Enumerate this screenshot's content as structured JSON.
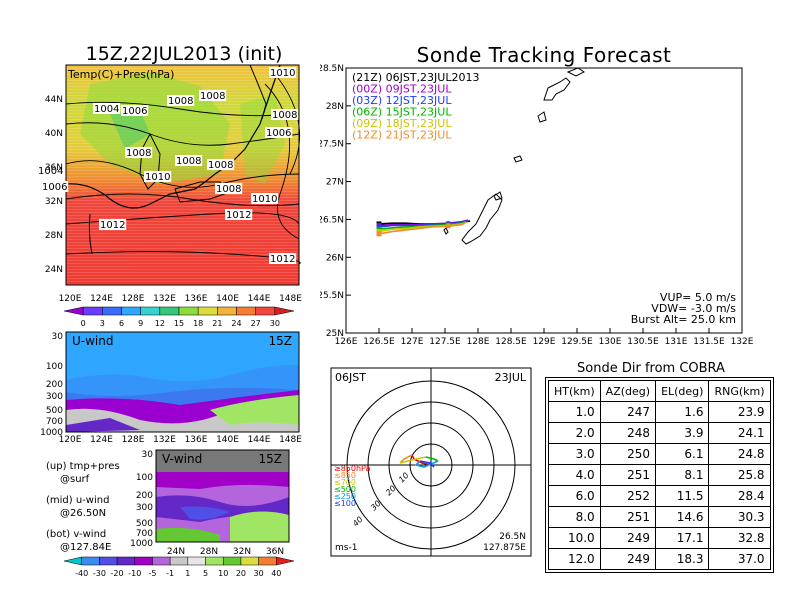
{
  "left_panel": {
    "title": "15Z,22JUL2013 (init)",
    "map_label": "Temp(C)+Pres(hPa)",
    "lat_labels": [
      "44N",
      "40N",
      "36N",
      "32N",
      "28N",
      "24N"
    ],
    "lon_labels": [
      "120E",
      "124E",
      "128E",
      "132E",
      "136E",
      "140E",
      "144E",
      "148E"
    ],
    "isobar_labels": [
      "1004",
      "1006",
      "1008",
      "1008",
      "1010",
      "1008",
      "1008",
      "1006",
      "1008",
      "1010",
      "1004",
      "1006",
      "1008",
      "1008",
      "1010",
      "1012",
      "1012",
      "1012"
    ],
    "colorbar_ticks": [
      "0",
      "3",
      "6",
      "9",
      "12",
      "15",
      "18",
      "21",
      "24",
      "27",
      "30"
    ],
    "colorbar_colors": [
      "#9a00d0",
      "#6a3cff",
      "#3a6bff",
      "#2fa6ff",
      "#34d2d2",
      "#35c878",
      "#8cdc3c",
      "#dcdc3c",
      "#f2b23c",
      "#f57d32",
      "#f0463c",
      "#d62020"
    ]
  },
  "uwind_panel": {
    "label": "U-wind",
    "time": "15Z",
    "p_labels": [
      "30",
      "100",
      "200",
      "300",
      "500",
      "700",
      "1000"
    ],
    "lon_labels": [
      "120E",
      "124E",
      "128E",
      "132E",
      "136E",
      "140E",
      "144E",
      "148E"
    ]
  },
  "vwind_panel": {
    "label": "V-wind",
    "time": "15Z",
    "p_labels": [
      "30",
      "100",
      "200",
      "300",
      "500",
      "700",
      "1000"
    ],
    "lat_labels": [
      "24N",
      "28N",
      "32N",
      "36N"
    ]
  },
  "notes": [
    {
      "a": "(up) tmp+pres",
      "b": "@surf"
    },
    {
      "a": "(mid) u-wind",
      "b": "@26.50N"
    },
    {
      "a": "(bot) v-wind",
      "b": "@127.84E"
    }
  ],
  "wind_colorbar_ticks": [
    "-40",
    "-30",
    "-20",
    "-10",
    "-5",
    "-1",
    "1",
    "5",
    "10",
    "20",
    "30",
    "40"
  ],
  "wind_colorbar_colors": [
    "#00c8c8",
    "#3c8cf0",
    "#5050e6",
    "#6428c8",
    "#a000c8",
    "#b464dc",
    "#c8c8c8",
    "#e6e6e6",
    "#a0e664",
    "#64c832",
    "#dcdc3c",
    "#f57d32",
    "#e61e1e"
  ],
  "tracking": {
    "title": "Sonde Tracking Forecast",
    "lat_ticks": [
      "28.5N",
      "28N",
      "27.5N",
      "27N",
      "26.5N",
      "26N",
      "25.5N",
      "25N"
    ],
    "lon_ticks": [
      "126E",
      "126.5E",
      "127E",
      "127.5E",
      "128E",
      "128.5E",
      "129E",
      "129.5E",
      "130E",
      "130.5E",
      "131E",
      "131.5E",
      "132E"
    ],
    "legend": [
      {
        "text": "(21Z)  06JST,23JUL2013",
        "color": "#000000"
      },
      {
        "text": "(00Z)  09JST,23JUL",
        "color": "#a000c8"
      },
      {
        "text": "(03Z)  12JST,23JUL",
        "color": "#1e3cff"
      },
      {
        "text": "(06Z)  15JST,23JUL",
        "color": "#00b400"
      },
      {
        "text": "(09Z)  18JST,23JUL",
        "color": "#c8c800"
      },
      {
        "text": "(12Z)  21JST,23JUL",
        "color": "#f08c28"
      }
    ],
    "params": [
      "VUP=  5.0  m/s",
      "VDW= -3.0  m/s",
      "Burst Alt=  25.0  km"
    ]
  },
  "chart_data": {
    "type": "line",
    "title": "Sonde Tracking Forecast",
    "xlabel": "",
    "ylabel": "",
    "xlim": [
      126,
      132
    ],
    "ylim": [
      25,
      28.5
    ],
    "series": [
      {
        "name": "(21Z) 06JST,23JUL2013",
        "color": "#000000",
        "x": [
          126.5,
          126.7,
          126.9,
          127.1,
          127.3,
          127.55,
          127.75,
          127.88
        ],
        "y": [
          26.44,
          26.45,
          26.45,
          26.44,
          26.44,
          26.44,
          26.46,
          26.48
        ]
      },
      {
        "name": "(00Z) 09JST,23JUL",
        "color": "#a000c8",
        "x": [
          126.5,
          126.7,
          126.9,
          127.1,
          127.3,
          127.55,
          127.75,
          127.85
        ],
        "y": [
          26.42,
          26.43,
          26.43,
          26.43,
          26.44,
          26.45,
          26.47,
          26.49
        ]
      },
      {
        "name": "(03Z) 12JST,23JUL",
        "color": "#1e3cff",
        "x": [
          126.5,
          126.7,
          126.9,
          127.1,
          127.3,
          127.55,
          127.75,
          127.85
        ],
        "y": [
          26.4,
          26.42,
          26.42,
          26.42,
          26.43,
          26.44,
          26.46,
          26.48
        ]
      },
      {
        "name": "(06Z) 15JST,23JUL",
        "color": "#00b400",
        "x": [
          126.5,
          126.7,
          126.9,
          127.1,
          127.3,
          127.55,
          127.75,
          127.82
        ],
        "y": [
          26.37,
          26.39,
          26.4,
          26.41,
          26.42,
          26.43,
          26.45,
          26.47
        ]
      },
      {
        "name": "(09Z) 18JST,23JUL",
        "color": "#c8c800",
        "x": [
          126.5,
          126.7,
          126.9,
          127.1,
          127.3,
          127.55,
          127.75,
          127.82
        ],
        "y": [
          26.34,
          26.37,
          26.38,
          26.4,
          26.41,
          26.42,
          26.44,
          26.46
        ]
      },
      {
        "name": "(12Z) 21JST,23JUL",
        "color": "#f08c28",
        "x": [
          126.5,
          126.7,
          126.9,
          127.1,
          127.3,
          127.55,
          127.75,
          127.8
        ],
        "y": [
          26.31,
          26.34,
          26.36,
          26.38,
          26.4,
          26.41,
          26.43,
          26.45
        ]
      }
    ]
  },
  "polar": {
    "left_label": "06JST",
    "right_label": "23JUL",
    "level_labels": [
      {
        "text": "≥850hPa",
        "color": "#e60000"
      },
      {
        "text": "≤850",
        "color": "#f08c28"
      },
      {
        "text": "≤700",
        "color": "#c8c800"
      },
      {
        "text": "≤500",
        "color": "#00b400"
      },
      {
        "text": "≤250",
        "color": "#00a0e6"
      },
      {
        "text": "≤100",
        "color": "#1e3cff"
      }
    ],
    "ring_labels": [
      "10",
      "20",
      "30",
      "40"
    ],
    "coord1": "26.5N",
    "coord2": "127.875E",
    "unit": "ms-1"
  },
  "sonde_table": {
    "title": "Sonde Dir from COBRA",
    "headers": [
      "HT(km)",
      "AZ(deg)",
      "EL(deg)",
      "RNG(km)"
    ],
    "rows": [
      [
        "1.0",
        "247",
        "1.6",
        "23.9"
      ],
      [
        "2.0",
        "248",
        "3.9",
        "24.1"
      ],
      [
        "3.0",
        "250",
        "6.1",
        "24.8"
      ],
      [
        "4.0",
        "251",
        "8.1",
        "25.8"
      ],
      [
        "6.0",
        "252",
        "11.5",
        "28.4"
      ],
      [
        "8.0",
        "251",
        "14.6",
        "30.3"
      ],
      [
        "10.0",
        "249",
        "17.1",
        "32.8"
      ],
      [
        "12.0",
        "249",
        "18.3",
        "37.0"
      ]
    ]
  }
}
